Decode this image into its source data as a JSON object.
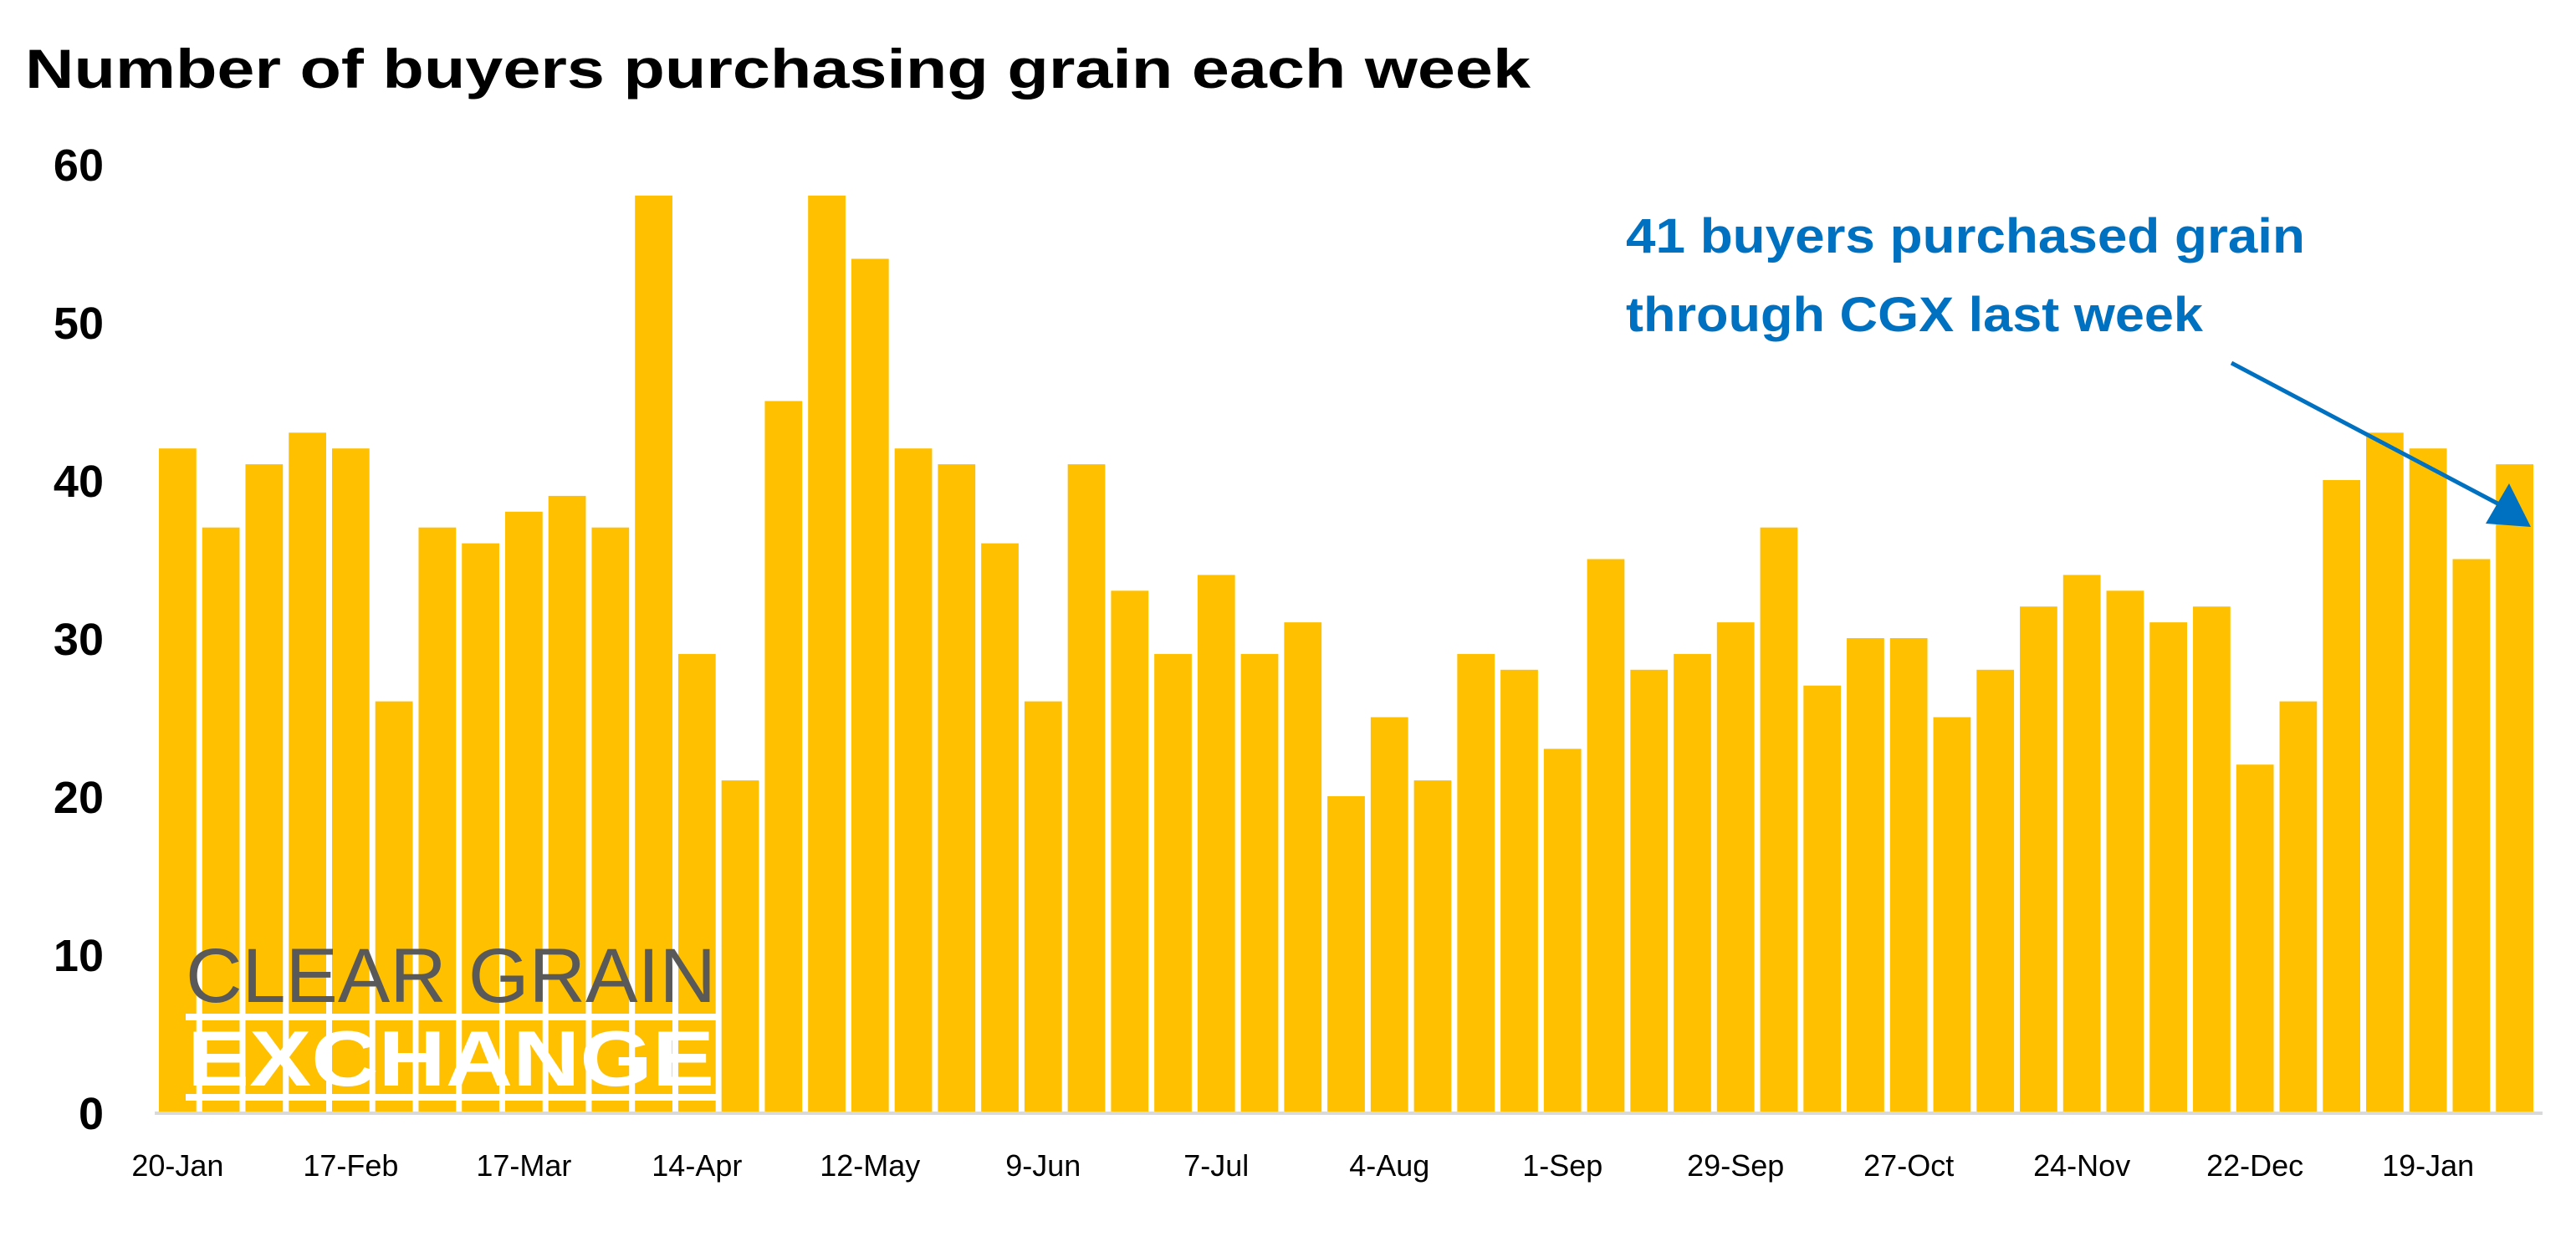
{
  "chart_data": {
    "type": "bar",
    "title": "Number of buyers purchasing grain each week",
    "xlabel": "",
    "ylabel": "",
    "ylim": [
      0,
      60
    ],
    "yticks": [
      0,
      10,
      20,
      30,
      40,
      50,
      60
    ],
    "grid": false,
    "bar_color": "#FFC000",
    "tick_labels": [
      "20-Jan",
      "17-Feb",
      "17-Mar",
      "14-Apr",
      "12-May",
      "9-Jun",
      "7-Jul",
      "4-Aug",
      "1-Sep",
      "29-Sep",
      "27-Oct",
      "24-Nov",
      "22-Dec",
      "19-Jan"
    ],
    "tick_every": 4,
    "values": [
      42,
      37,
      41,
      43,
      42,
      26,
      37,
      36,
      38,
      39,
      37,
      58,
      29,
      21,
      45,
      58,
      54,
      42,
      41,
      36,
      26,
      41,
      33,
      29,
      34,
      29,
      31,
      20,
      25,
      21,
      29,
      28,
      23,
      35,
      28,
      29,
      31,
      37,
      27,
      30,
      30,
      25,
      28,
      32,
      34,
      33,
      31,
      32,
      22,
      26,
      40,
      43,
      42,
      35,
      41
    ],
    "annotation": {
      "lines": [
        "41 buyers purchased grain",
        "through CGX last week"
      ],
      "color": "#0070C0",
      "points_to": "last bar"
    }
  },
  "logo": {
    "line1": "CLEAR GRAIN",
    "line2": "EXCHANGE",
    "line1_color": "#595959"
  }
}
